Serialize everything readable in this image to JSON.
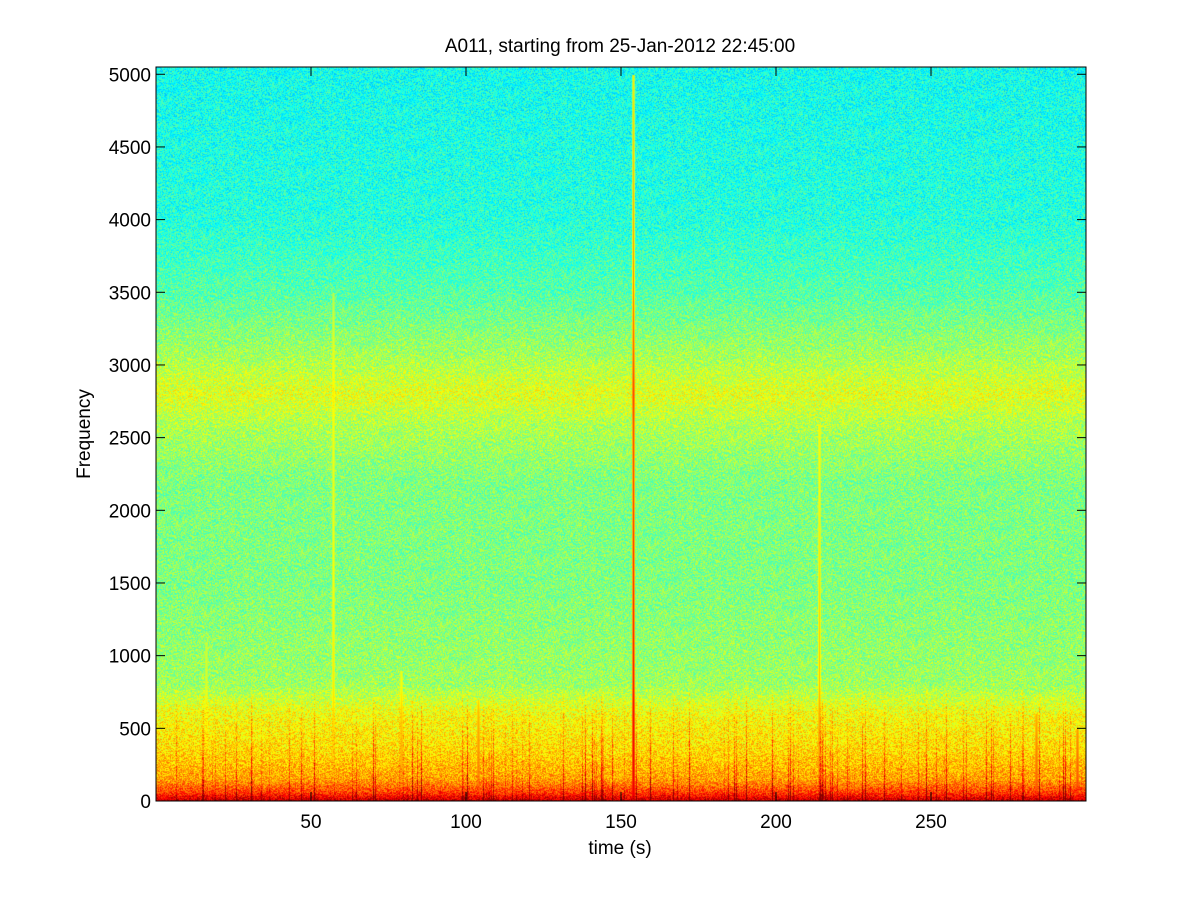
{
  "chart_data": {
    "type": "heatmap",
    "title": "A011, starting from 25-Jan-2012 22:45:00",
    "xlabel": "time (s)",
    "ylabel": "Frequency",
    "xlim": [
      0,
      300
    ],
    "ylim": [
      0,
      5050
    ],
    "xticks": [
      50,
      100,
      150,
      200,
      250
    ],
    "yticks": [
      0,
      500,
      1000,
      1500,
      2000,
      2500,
      3000,
      3500,
      4000,
      4500,
      5000
    ],
    "colormap": "jet",
    "grid": false,
    "intensity_profile_by_frequency": [
      {
        "frequency": 0,
        "level": 0.95
      },
      {
        "frequency": 60,
        "level": 0.82
      },
      {
        "frequency": 150,
        "level": 0.72
      },
      {
        "frequency": 350,
        "level": 0.66
      },
      {
        "frequency": 600,
        "level": 0.62
      },
      {
        "frequency": 800,
        "level": 0.53
      },
      {
        "frequency": 1500,
        "level": 0.5
      },
      {
        "frequency": 2200,
        "level": 0.5
      },
      {
        "frequency": 2600,
        "level": 0.55
      },
      {
        "frequency": 2800,
        "level": 0.6
      },
      {
        "frequency": 3050,
        "level": 0.54
      },
      {
        "frequency": 3500,
        "level": 0.46
      },
      {
        "frequency": 4000,
        "level": 0.41
      },
      {
        "frequency": 5050,
        "level": 0.39
      }
    ],
    "broadband_events": [
      {
        "time": 154,
        "top_frequency": 5000,
        "level": 0.9
      },
      {
        "time": 214,
        "top_frequency": 2600,
        "level": 0.72
      },
      {
        "time": 57,
        "top_frequency": 3500,
        "level": 0.66
      },
      {
        "time": 16,
        "top_frequency": 1100,
        "level": 0.62
      },
      {
        "time": 79,
        "top_frequency": 900,
        "level": 0.7
      },
      {
        "time": 104,
        "top_frequency": 700,
        "level": 0.75
      },
      {
        "time": 284,
        "top_frequency": 600,
        "level": 0.78
      },
      {
        "time": 297,
        "top_frequency": 500,
        "level": 0.8
      }
    ]
  }
}
